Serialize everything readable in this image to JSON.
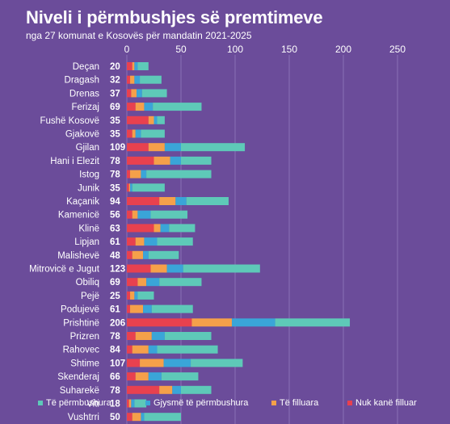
{
  "chart_data": {
    "type": "bar",
    "stacked": true,
    "orientation": "horizontal",
    "title": "Niveli i përmbushjes së premtimeve",
    "subtitle": "nga 27 komunat e Kosovës për mandatin 2021-2025",
    "xlim": [
      0,
      250
    ],
    "xticks": [
      0,
      50,
      100,
      150,
      200,
      250
    ],
    "grid": true,
    "legend_position": "bottom",
    "categories": [
      "Deçan",
      "Dragash",
      "Drenas",
      "Ferizaj",
      "Fushë Kosovë",
      "Gjakovë",
      "Gjilan",
      "Hani i Elezit",
      "Istog",
      "Junik",
      "Kaçanik",
      "Kamenicë",
      "Klinë",
      "Lipjan",
      "Malishevë",
      "Mitrovicë e Jugut",
      "Obiliq",
      "Pejë",
      "Podujevë",
      "Prishtinë",
      "Prizren",
      "Rahovec",
      "Shtime",
      "Skenderaj",
      "Suharekë",
      "Viti",
      "Vushtrri"
    ],
    "totals": [
      "20",
      "32",
      "37",
      "69",
      "35",
      "35",
      "109",
      "78",
      "78",
      "35",
      "94",
      "56",
      "63",
      "61",
      "48",
      "123",
      "69",
      "25",
      "61",
      "206",
      "78",
      "84",
      "107",
      "66",
      "78",
      "18",
      "50"
    ],
    "series": [
      {
        "name": "Nuk kanë filluar",
        "color": "#e8414f",
        "values": [
          5,
          3,
          4,
          8,
          20,
          5,
          20,
          25,
          3,
          2,
          30,
          5,
          25,
          8,
          5,
          22,
          10,
          3,
          3,
          60,
          8,
          5,
          12,
          8,
          30,
          2,
          5
        ]
      },
      {
        "name": "Të filluara",
        "color": "#f5a04a",
        "values": [
          2,
          4,
          5,
          8,
          5,
          3,
          15,
          15,
          10,
          1,
          15,
          5,
          6,
          8,
          10,
          15,
          8,
          4,
          12,
          37,
          15,
          15,
          22,
          12,
          12,
          2,
          8
        ]
      },
      {
        "name": "Gjysmë të përmbushura",
        "color": "#3aa5d8",
        "values": [
          3,
          5,
          5,
          8,
          3,
          5,
          15,
          10,
          5,
          2,
          10,
          12,
          8,
          12,
          5,
          15,
          12,
          3,
          8,
          40,
          12,
          8,
          25,
          12,
          8,
          3,
          3
        ]
      },
      {
        "name": "Të përmbushura",
        "color": "#5ec9b8",
        "values": [
          10,
          20,
          23,
          45,
          7,
          22,
          59,
          28,
          60,
          30,
          39,
          34,
          24,
          33,
          28,
          71,
          39,
          15,
          38,
          69,
          43,
          56,
          48,
          34,
          28,
          11,
          34
        ]
      }
    ],
    "legend_order": [
      "Të përmbushura",
      "Gjysmë të përmbushura",
      "Të filluara",
      "Nuk kanë filluar"
    ]
  }
}
